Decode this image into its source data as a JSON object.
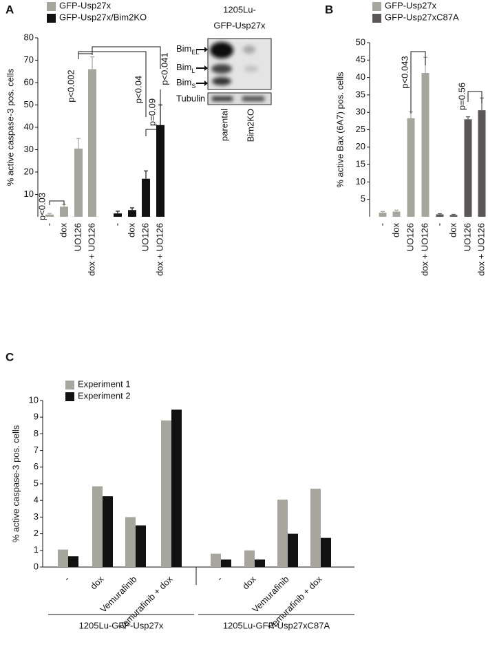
{
  "chart_data": [
    {
      "type": "bar",
      "panel_label": "A",
      "categories": [
        "-",
        "dox",
        "UO126",
        "dox + UO126",
        "-",
        "dox",
        "UO126",
        "dox + UO126"
      ],
      "series": [
        {
          "name": "GFP-Usp27x",
          "color": "#a6a69e",
          "values": [
            1,
            4.5,
            30.5,
            66,
            null,
            null,
            null,
            null
          ],
          "errors": [
            0.5,
            1,
            4.5,
            5.5,
            null,
            null,
            null,
            null
          ]
        },
        {
          "name": "GFP-Usp27x/Bim2KO",
          "color": "#111111",
          "values": [
            null,
            null,
            null,
            null,
            1.5,
            3,
            17,
            41
          ],
          "errors": [
            null,
            null,
            null,
            null,
            1,
            1,
            3.5,
            9
          ]
        }
      ],
      "y_label": "% active caspase-3 pos. cells",
      "ylim": [
        0,
        80
      ],
      "yticks": [
        10,
        20,
        30,
        40,
        50,
        60,
        70,
        80
      ],
      "annotations": [
        "p<0.03",
        "p<0.002",
        "p<0.04",
        "p=0.09",
        "p<0.041"
      ]
    },
    {
      "type": "bar",
      "panel_label": "B",
      "categories": [
        "-",
        "dox",
        "UO126",
        "dox + UO126",
        "-",
        "dox",
        "UO126",
        "dox + UO126"
      ],
      "series": [
        {
          "name": "GFP-Usp27x",
          "color": "#a6a69e",
          "values": [
            1.2,
            1.5,
            28.3,
            41.3,
            null,
            null,
            null,
            null
          ],
          "errors": [
            0.3,
            0.4,
            1.8,
            4.5,
            null,
            null,
            null,
            null
          ]
        },
        {
          "name": "GFP-Usp27xC87A",
          "color": "#5a5756",
          "values": [
            null,
            null,
            null,
            null,
            0.7,
            0.5,
            28,
            30.6
          ],
          "errors": [
            null,
            null,
            null,
            null,
            0.2,
            0.2,
            0.7,
            3.5
          ]
        }
      ],
      "y_label": "% active Bax (6A7) pos. cells",
      "ylim": [
        0,
        50
      ],
      "yticks": [
        5,
        10,
        15,
        20,
        25,
        30,
        35,
        40,
        45,
        50
      ],
      "annotations": [
        "p<0.043",
        "p=0.56"
      ]
    },
    {
      "type": "bar",
      "panel_label": "C",
      "categories": [
        "-",
        "dox",
        "Vemurafinib",
        "Vemurafinib + dox",
        "-",
        "dox",
        "Vemurafinib",
        "Vemurafinib + dox"
      ],
      "groups": [
        "1205Lu-GFP-Usp27x",
        "1205Lu-GFP-Usp27xC87A"
      ],
      "series": [
        {
          "name": "Experiment 1",
          "color": "#a6a69e",
          "values": [
            1.05,
            4.85,
            3.0,
            8.8,
            0.8,
            1.0,
            4.05,
            4.7
          ]
        },
        {
          "name": "Experiment 2",
          "color": "#111111",
          "values": [
            0.65,
            4.25,
            2.5,
            9.45,
            0.45,
            0.45,
            2.0,
            1.75
          ]
        }
      ],
      "y_label": "% active caspase-3 pos. cells",
      "ylim": [
        0,
        10
      ],
      "yticks": [
        0,
        1,
        2,
        3,
        4,
        5,
        6,
        7,
        8,
        9,
        10
      ]
    }
  ],
  "blot": {
    "title_lines": [
      "1205Lu-",
      "GFP-Usp27x"
    ],
    "bands": [
      {
        "name": "Bim",
        "sub": "EL"
      },
      {
        "name": "Bim",
        "sub": "L"
      },
      {
        "name": "Bim",
        "sub": "S"
      }
    ],
    "loading_control": "Tubulin",
    "lanes": [
      "parental",
      "Bim2KO"
    ]
  }
}
